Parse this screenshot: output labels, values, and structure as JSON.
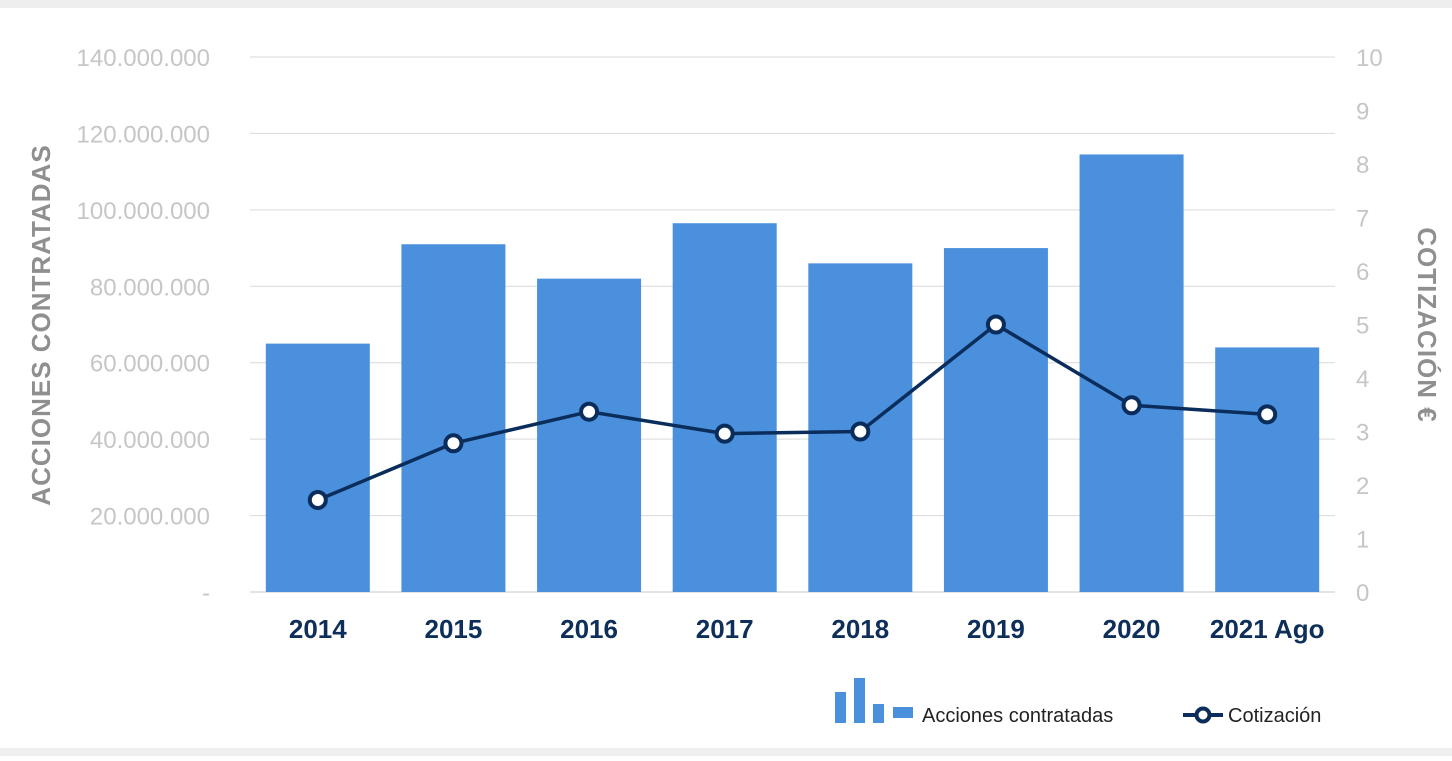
{
  "chart_data": {
    "type": "bar",
    "categories": [
      "2014",
      "2015",
      "2016",
      "2017",
      "2018",
      "2019",
      "2020",
      "2021 Ago"
    ],
    "series": [
      {
        "name": "Acciones contratadas",
        "type": "bar",
        "axis": "left",
        "values": [
          65000000,
          91000000,
          82000000,
          96500000,
          86000000,
          90000000,
          114500000,
          64000000
        ]
      },
      {
        "name": "Cotización",
        "type": "line",
        "axis": "right",
        "values": [
          1.72,
          2.78,
          3.37,
          2.96,
          3.0,
          5.0,
          3.49,
          3.32
        ]
      }
    ],
    "ylabel": "ACCIONES CONTRATADAS",
    "y2label": "COTIZACIÓN €",
    "ylim": [
      0,
      140000000
    ],
    "y2lim": [
      0,
      10
    ],
    "yticks": [
      "-",
      "20.000.000",
      "40.000.000",
      "60.000.000",
      "80.000.000",
      "100.000.000",
      "120.000.000",
      "140.000.000"
    ],
    "y2ticks": [
      "0",
      "1",
      "2",
      "3",
      "4",
      "5",
      "6",
      "7",
      "8",
      "9",
      "10"
    ],
    "grid": true,
    "legend": "bottom-right",
    "colors": {
      "bar": "#4a90dc",
      "line": "#0b2d5c",
      "grid": "#d9d9d9",
      "frame": "#eeeeee"
    }
  }
}
